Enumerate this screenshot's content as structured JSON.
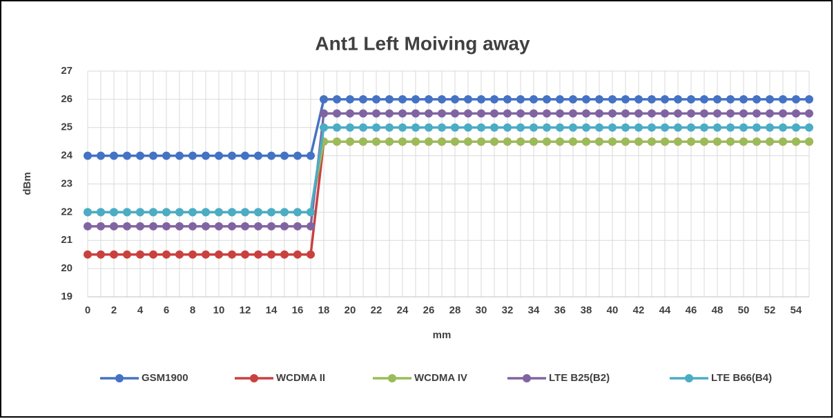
{
  "chart_data": {
    "type": "line",
    "title": "Ant1 Left Moiving away",
    "x_label": "mm",
    "y_label": "dBm",
    "categories": [
      0,
      null,
      2,
      null,
      4,
      null,
      6,
      null,
      8,
      null,
      10,
      null,
      12,
      null,
      14,
      null,
      16,
      null,
      18,
      null,
      20,
      null,
      22,
      null,
      24,
      null,
      26,
      null,
      28,
      null,
      30,
      null,
      32,
      null,
      34,
      null,
      36,
      null,
      38,
      null,
      40,
      null,
      42,
      null,
      44,
      null,
      46,
      null,
      48,
      null,
      50,
      null,
      52,
      null,
      54,
      null
    ],
    "ylim": [
      19,
      27
    ],
    "yticks": [
      19,
      20,
      21,
      22,
      23,
      24,
      25,
      26,
      27
    ],
    "grid": true,
    "legend": "bottom",
    "series": [
      {
        "name": "GSM1900",
        "color": "#4472c4",
        "values": [
          24,
          24,
          24,
          24,
          24,
          24,
          24,
          24,
          24,
          24,
          24,
          24,
          24,
          24,
          24,
          24,
          24,
          24,
          26,
          26,
          26,
          26,
          26,
          26,
          26,
          26,
          26,
          26,
          26,
          26,
          26,
          26,
          26,
          26,
          26,
          26,
          26,
          26,
          26,
          26,
          26,
          26,
          26,
          26,
          26,
          26,
          26,
          26,
          26,
          26,
          26,
          26,
          26,
          26,
          26,
          26
        ]
      },
      {
        "name": "WCDMA II",
        "color": "#c9413f",
        "values": [
          20.5,
          20.5,
          20.5,
          20.5,
          20.5,
          20.5,
          20.5,
          20.5,
          20.5,
          20.5,
          20.5,
          20.5,
          20.5,
          20.5,
          20.5,
          20.5,
          20.5,
          20.5,
          24.5,
          24.5,
          24.5,
          24.5,
          24.5,
          24.5,
          24.5,
          24.5,
          24.5,
          24.5,
          24.5,
          24.5,
          24.5,
          24.5,
          24.5,
          24.5,
          24.5,
          24.5,
          24.5,
          24.5,
          24.5,
          24.5,
          24.5,
          24.5,
          24.5,
          24.5,
          24.5,
          24.5,
          24.5,
          24.5,
          24.5,
          24.5,
          24.5,
          24.5,
          24.5,
          24.5,
          24.5,
          24.5
        ]
      },
      {
        "name": "WCDMA IV",
        "color": "#9bbb59",
        "values": [
          22,
          22,
          22,
          22,
          22,
          22,
          22,
          22,
          22,
          22,
          22,
          22,
          22,
          22,
          22,
          22,
          22,
          22,
          24.5,
          24.5,
          24.5,
          24.5,
          24.5,
          24.5,
          24.5,
          24.5,
          24.5,
          24.5,
          24.5,
          24.5,
          24.5,
          24.5,
          24.5,
          24.5,
          24.5,
          24.5,
          24.5,
          24.5,
          24.5,
          24.5,
          24.5,
          24.5,
          24.5,
          24.5,
          24.5,
          24.5,
          24.5,
          24.5,
          24.5,
          24.5,
          24.5,
          24.5,
          24.5,
          24.5,
          24.5,
          24.5
        ]
      },
      {
        "name": "LTE B25(B2)",
        "color": "#8064a2",
        "values": [
          21.5,
          21.5,
          21.5,
          21.5,
          21.5,
          21.5,
          21.5,
          21.5,
          21.5,
          21.5,
          21.5,
          21.5,
          21.5,
          21.5,
          21.5,
          21.5,
          21.5,
          21.5,
          25.5,
          25.5,
          25.5,
          25.5,
          25.5,
          25.5,
          25.5,
          25.5,
          25.5,
          25.5,
          25.5,
          25.5,
          25.5,
          25.5,
          25.5,
          25.5,
          25.5,
          25.5,
          25.5,
          25.5,
          25.5,
          25.5,
          25.5,
          25.5,
          25.5,
          25.5,
          25.5,
          25.5,
          25.5,
          25.5,
          25.5,
          25.5,
          25.5,
          25.5,
          25.5,
          25.5,
          25.5,
          25.5
        ]
      },
      {
        "name": "LTE B66(B4)",
        "color": "#4bacc6",
        "values": [
          22,
          22,
          22,
          22,
          22,
          22,
          22,
          22,
          22,
          22,
          22,
          22,
          22,
          22,
          22,
          22,
          22,
          22,
          25,
          25,
          25,
          25,
          25,
          25,
          25,
          25,
          25,
          25,
          25,
          25,
          25,
          25,
          25,
          25,
          25,
          25,
          25,
          25,
          25,
          25,
          25,
          25,
          25,
          25,
          25,
          25,
          25,
          25,
          25,
          25,
          25,
          25,
          25,
          25,
          25,
          25
        ]
      }
    ]
  }
}
